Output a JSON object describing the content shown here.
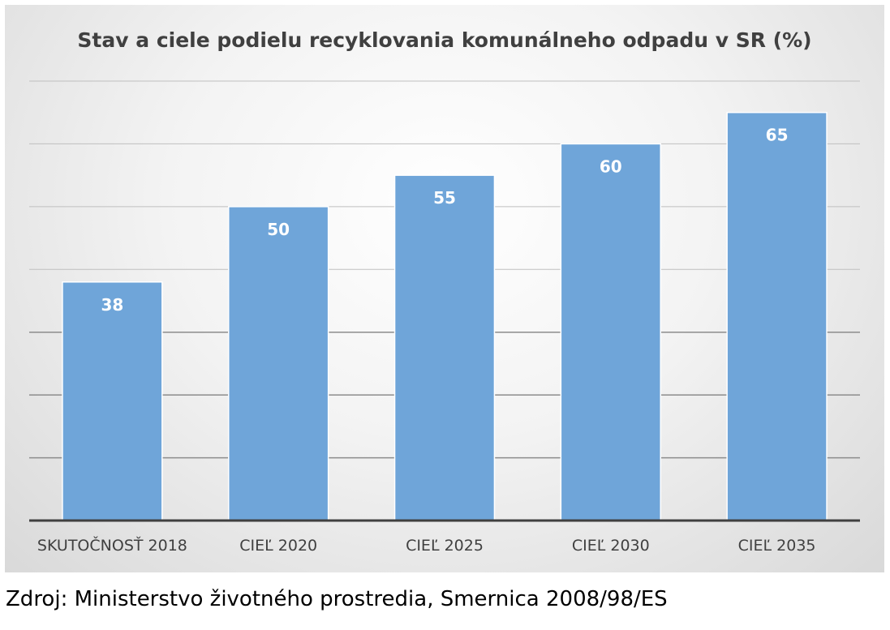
{
  "chart_data": {
    "type": "bar",
    "title": "Stav a ciele podielu recyklovania komunálneho odpadu v SR (%)",
    "categories": [
      "SKUTOČNOSŤ  2018",
      "CIEĽ 2020",
      "CIEĽ 2025",
      "CIEĽ 2030",
      "CIEĽ 2035"
    ],
    "values": [
      38,
      50,
      55,
      60,
      65
    ],
    "data_labels": [
      "38",
      "50",
      "55",
      "60",
      "65"
    ],
    "xlabel": "",
    "ylabel": "",
    "ylim": [
      0,
      70
    ],
    "grid": true,
    "legend": "none",
    "colors": {
      "bar_fill": "#6fa5d9",
      "bar_stroke": "#ffffff",
      "gridline": "#bfbfbf",
      "axis": "#404040"
    }
  },
  "source": {
    "text": "Zdroj: Ministerstvo životného prostredia, Smernica 2008/98/ES"
  }
}
